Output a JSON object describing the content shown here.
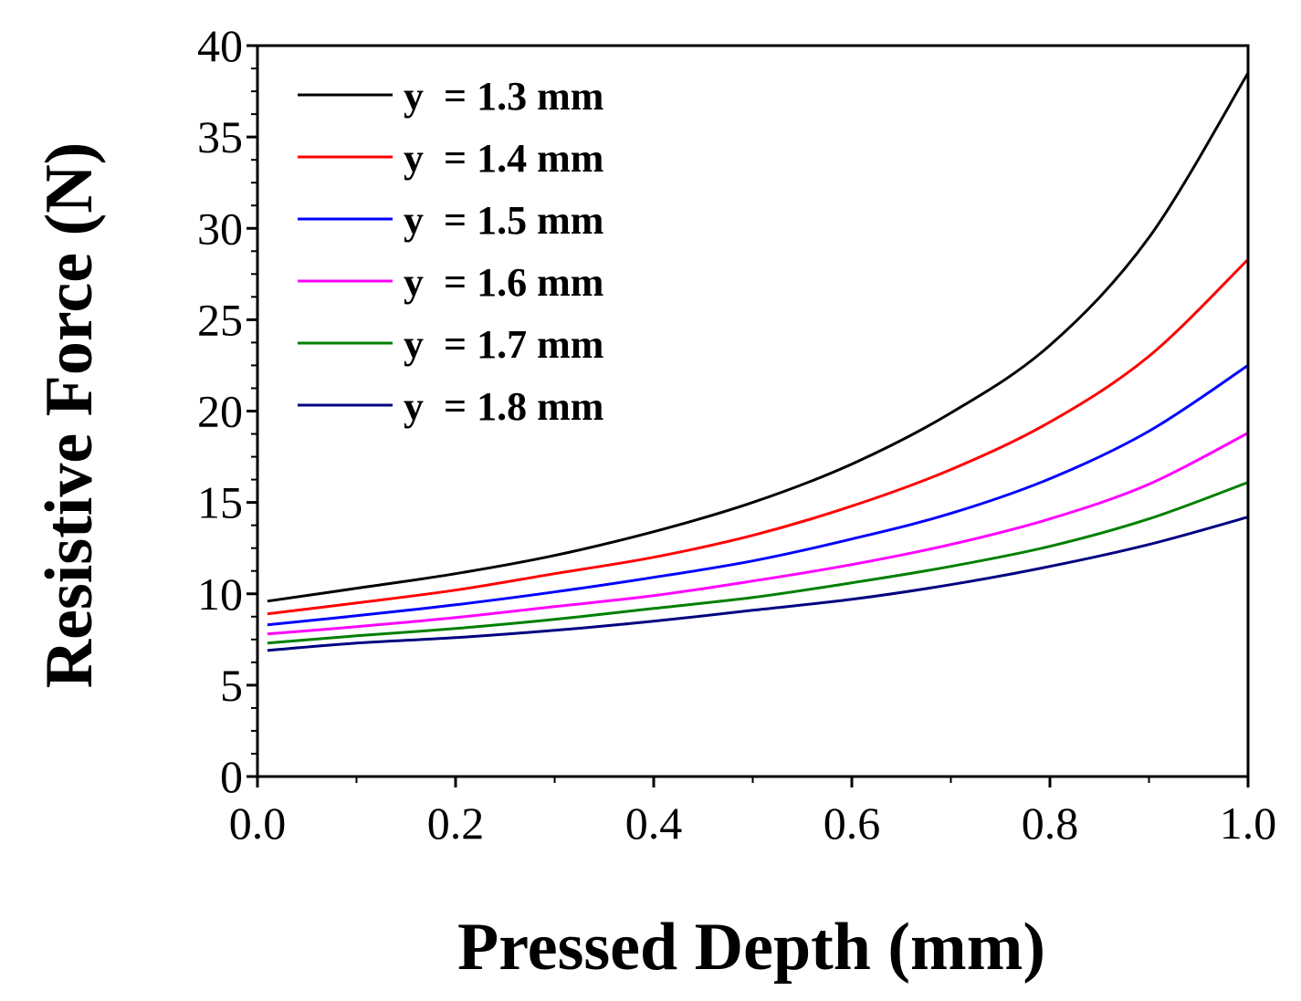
{
  "chart_data": {
    "type": "line",
    "title": "",
    "xlabel": "Pressed Depth (mm)",
    "ylabel": "Resistive Force (N)",
    "xlim": [
      0.0,
      1.0
    ],
    "ylim": [
      0,
      40
    ],
    "xticks": [
      "0.0",
      "0.2",
      "0.4",
      "0.6",
      "0.8",
      "1.0"
    ],
    "yticks": [
      "0",
      "5",
      "10",
      "15",
      "20",
      "25",
      "30",
      "35",
      "40"
    ],
    "grid": false,
    "legend_position": "top-left",
    "x": [
      0.0,
      0.1,
      0.2,
      0.3,
      0.4,
      0.5,
      0.6,
      0.7,
      0.8,
      0.9,
      1.0
    ],
    "series": [
      {
        "name": "y  = 1.3 mm",
        "color": "#000000",
        "values": [
          9.6,
          10.3,
          11.1,
          12.1,
          13.4,
          15.0,
          17.1,
          19.9,
          23.6,
          29.5,
          38.5
        ]
      },
      {
        "name": "y  = 1.4 mm",
        "color": "#ff0000",
        "values": [
          8.9,
          9.5,
          10.2,
          11.1,
          12.0,
          13.2,
          14.8,
          16.8,
          19.4,
          23.0,
          28.3
        ]
      },
      {
        "name": "y  = 1.5 mm",
        "color": "#0000ff",
        "values": [
          8.3,
          8.8,
          9.4,
          10.1,
          10.9,
          11.8,
          13.0,
          14.4,
          16.3,
          18.9,
          22.5
        ]
      },
      {
        "name": "y  = 1.6 mm",
        "color": "#ff00ff",
        "values": [
          7.8,
          8.2,
          8.7,
          9.3,
          9.9,
          10.7,
          11.6,
          12.7,
          14.1,
          16.0,
          18.8
        ]
      },
      {
        "name": "y  = 1.7 mm",
        "color": "#008000",
        "values": [
          7.3,
          7.7,
          8.1,
          8.6,
          9.2,
          9.8,
          10.6,
          11.5,
          12.6,
          14.1,
          16.1
        ]
      },
      {
        "name": "y  = 1.8 mm",
        "color": "#000080",
        "values": [
          6.9,
          7.3,
          7.6,
          8.0,
          8.5,
          9.1,
          9.7,
          10.5,
          11.5,
          12.7,
          14.2
        ]
      }
    ]
  }
}
